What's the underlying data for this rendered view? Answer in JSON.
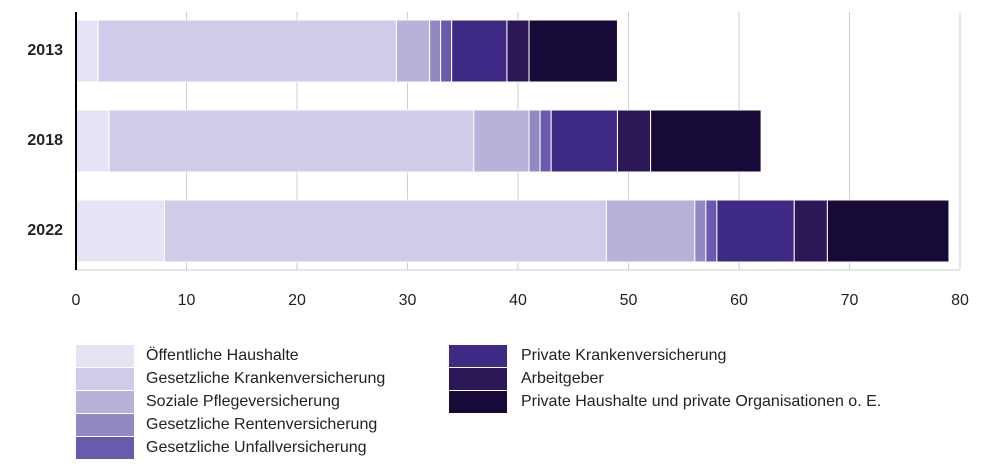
{
  "chart_data": {
    "type": "stacked_barh",
    "categories": [
      "2013",
      "2018",
      "2022"
    ],
    "series": [
      {
        "name": "Öffentliche Haushalte",
        "color": "#e6e4f4",
        "values": [
          2,
          3,
          8
        ]
      },
      {
        "name": "Gesetzliche Krankenversicherung",
        "color": "#d1cbea",
        "values": [
          27,
          33,
          40
        ]
      },
      {
        "name": "Soziale Pflegeversicherung",
        "color": "#b8b2da",
        "values": [
          3,
          5,
          8
        ]
      },
      {
        "name": "Gesetzliche Rentenversicherung",
        "color": "#9388c2",
        "values": [
          1,
          1,
          1
        ]
      },
      {
        "name": "Gesetzliche Unfallversicherung",
        "color": "#6a5aad",
        "values": [
          1,
          1,
          1
        ]
      },
      {
        "name": "Private Krankenversicherung",
        "color": "#3e2a85",
        "values": [
          5,
          6,
          7
        ]
      },
      {
        "name": "Arbeitgeber",
        "color": "#2c1857",
        "values": [
          2,
          3,
          3
        ]
      },
      {
        "name": "Private Haushalte und private Organisationen o. E.",
        "color": "#170a38",
        "values": [
          8,
          10,
          11
        ]
      }
    ],
    "xlim": [
      0,
      80
    ],
    "xticks": [
      0,
      10,
      20,
      30,
      40,
      50,
      60,
      70,
      80
    ],
    "grid": true
  }
}
